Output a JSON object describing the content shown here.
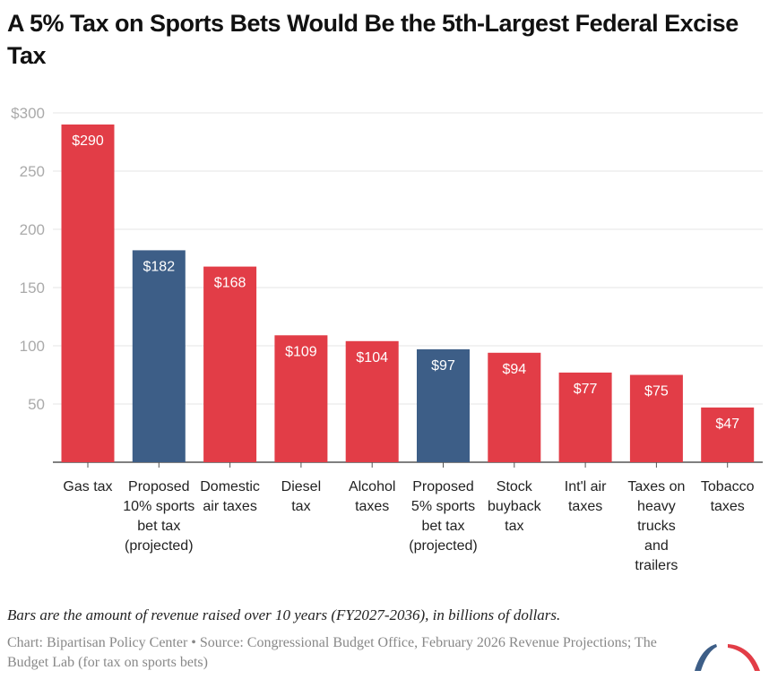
{
  "title": "A 5% Tax on Sports Bets Would Be the 5th-Largest Federal Excise Tax",
  "note": "Bars are the amount of revenue raised over 10 years (FY2027-2036), in billions of dollars.",
  "source": "Chart: Bipartisan Policy Center • Source: Congressional Budget Office, February 2026 Revenue Projections; The Budget Lab (for tax on sports bets)",
  "colors": {
    "default": "#e23d47",
    "highlight": "#3d5e87"
  },
  "chart_data": {
    "type": "bar",
    "categories": [
      [
        "Gas tax"
      ],
      [
        "Proposed",
        "10% sports",
        "bet tax",
        "(projected)"
      ],
      [
        "Domestic",
        "air taxes"
      ],
      [
        "Diesel",
        "tax"
      ],
      [
        "Alcohol",
        "taxes"
      ],
      [
        "Proposed",
        "5% sports",
        "bet tax",
        "(projected)"
      ],
      [
        "Stock",
        "buyback",
        "tax"
      ],
      [
        "Int'l air",
        "taxes"
      ],
      [
        "Taxes on",
        "heavy",
        "trucks",
        "and",
        "trailers"
      ],
      [
        "Tobacco",
        "taxes"
      ]
    ],
    "values": [
      290,
      182,
      168,
      109,
      104,
      97,
      94,
      77,
      75,
      47
    ],
    "data_labels": [
      "$290",
      "$182",
      "$168",
      "$109",
      "$104",
      "$97",
      "$94",
      "$77",
      "$75",
      "$47"
    ],
    "highlighted": [
      false,
      true,
      false,
      false,
      false,
      true,
      false,
      false,
      false,
      false
    ],
    "ylim": [
      0,
      300
    ],
    "yticks": [
      50,
      100,
      150,
      200,
      250,
      300
    ],
    "ytick_labels": [
      "50",
      "100",
      "150",
      "200",
      "250",
      "$300"
    ],
    "grid": true,
    "xlabel": "",
    "ylabel": ""
  }
}
